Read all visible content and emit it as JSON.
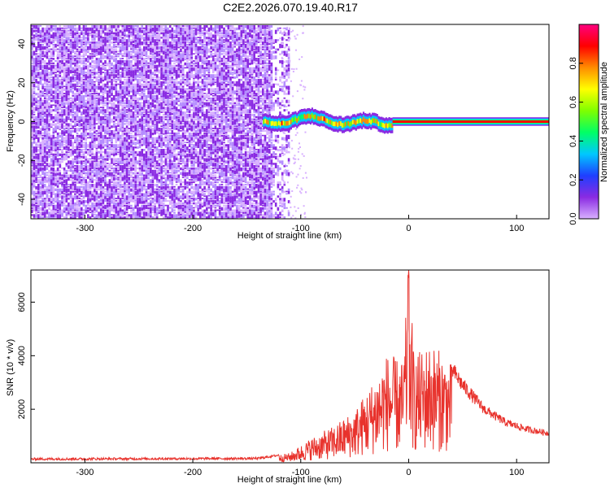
{
  "title": "C2E2.2026.070.19.40.R17",
  "chart_data": [
    {
      "type": "heatmap",
      "xlabel": "Height of straight line (km)",
      "ylabel": "Frequency (Hz)",
      "xlim": [
        -350,
        130
      ],
      "ylim": [
        -50,
        50
      ],
      "xticks": [
        -300,
        -200,
        -100,
        0,
        100
      ],
      "yticks": [
        -40,
        -20,
        0,
        20,
        40
      ],
      "colorbar": {
        "label": "Normalized spectral amplitude",
        "range": [
          0,
          1
        ],
        "ticks": [
          0.0,
          0.2,
          0.4,
          0.6,
          0.8
        ],
        "colormap": [
          "#d8b0ff",
          "#8a2be2",
          "#1f3fff",
          "#00c8ff",
          "#00ff66",
          "#7fff00",
          "#ffff00",
          "#ff8c00",
          "#ff0000",
          "#ff0080"
        ]
      },
      "regions": [
        {
          "x": [
            -350,
            -120
          ],
          "description_level": "noise",
          "frequency_span": [
            -50,
            50
          ],
          "amplitude": 0.05
        },
        {
          "x": [
            -135,
            -15
          ],
          "description_level": "signal-wandering",
          "frequency_center": 0,
          "amplitude": 0.6
        },
        {
          "x": [
            -15,
            130
          ],
          "description_level": "carrier",
          "frequency_center": 0,
          "amplitude": 0.9
        }
      ]
    },
    {
      "type": "line",
      "xlabel": "Height of straight line (km)",
      "ylabel": "SNR (10 * v/v)",
      "xlim": [
        -350,
        130
      ],
      "ylim": [
        0,
        7200
      ],
      "xticks": [
        -300,
        -200,
        -100,
        0,
        100
      ],
      "yticks": [
        2000,
        4000,
        6000
      ],
      "series": [
        {
          "color": "#e8322c",
          "envelope": [
            {
              "x": -350,
              "y": 140
            },
            {
              "x": -250,
              "y": 150
            },
            {
              "x": -140,
              "y": 160
            },
            {
              "x": -110,
              "y": 350
            },
            {
              "x": -90,
              "y": 900
            },
            {
              "x": -70,
              "y": 1300
            },
            {
              "x": -50,
              "y": 1900
            },
            {
              "x": -35,
              "y": 2800
            },
            {
              "x": -20,
              "y": 3900
            },
            {
              "x": -5,
              "y": 3600
            },
            {
              "x": 0,
              "y": 7200
            },
            {
              "x": 5,
              "y": 3800
            },
            {
              "x": 20,
              "y": 4300
            },
            {
              "x": 35,
              "y": 3800
            },
            {
              "x": 50,
              "y": 2900
            },
            {
              "x": 70,
              "y": 2000
            },
            {
              "x": 90,
              "y": 1500
            },
            {
              "x": 110,
              "y": 1250
            },
            {
              "x": 130,
              "y": 1100
            }
          ]
        }
      ]
    }
  ]
}
